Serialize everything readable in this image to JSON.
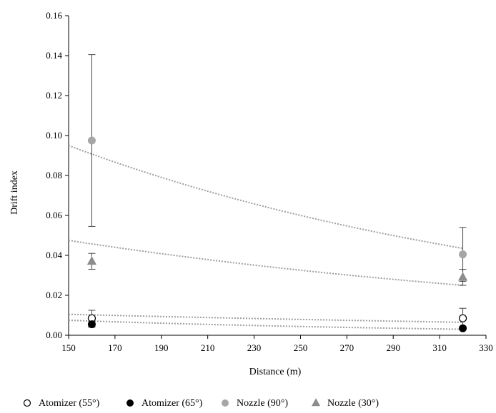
{
  "chart_data": {
    "type": "scatter",
    "xlabel": "Distance (m)",
    "ylabel": "Drift index",
    "xlim": [
      150,
      330
    ],
    "ylim": [
      0,
      0.16
    ],
    "xticks": [
      150,
      170,
      190,
      210,
      230,
      250,
      270,
      290,
      310,
      330
    ],
    "yticks": [
      0.0,
      0.02,
      0.04,
      0.06,
      0.08,
      0.1,
      0.12,
      0.14,
      0.16
    ],
    "ytick_labels": [
      "0.00",
      "0.02",
      "0.04",
      "0.06",
      "0.08",
      "0.10",
      "0.12",
      "0.14",
      "0.16"
    ],
    "grid": false,
    "legend_position": "bottom",
    "series": [
      {
        "name": "Atomizer (55°)",
        "marker": "circle-open",
        "color": "#000000",
        "x": [
          160,
          320
        ],
        "y": [
          0.0085,
          0.0085
        ],
        "err": [
          0.004,
          0.005
        ],
        "trend": [
          [
            150,
            0.0105
          ],
          [
            320,
            0.0065
          ]
        ]
      },
      {
        "name": "Atomizer (65°)",
        "marker": "circle-filled",
        "color": "#000000",
        "x": [
          160,
          320
        ],
        "y": [
          0.0055,
          0.0035
        ],
        "err": [
          0.0015,
          0.0005
        ],
        "trend": [
          [
            150,
            0.0075
          ],
          [
            320,
            0.003
          ]
        ]
      },
      {
        "name": "Nozzle (90°)",
        "marker": "circle-filled",
        "color": "#a6a6a6",
        "x": [
          160,
          320
        ],
        "y": [
          0.0975,
          0.0405
        ],
        "err": [
          0.043,
          0.0135
        ],
        "trend": [
          [
            150,
            0.095
          ],
          [
            320,
            0.0435
          ]
        ]
      },
      {
        "name": "Nozzle (30°)",
        "marker": "triangle-filled",
        "color": "#8c8c8c",
        "x": [
          160,
          320
        ],
        "y": [
          0.037,
          0.029
        ],
        "err": [
          0.004,
          0.004
        ],
        "trend": [
          [
            150,
            0.0475
          ],
          [
            320,
            0.025
          ]
        ]
      }
    ]
  }
}
